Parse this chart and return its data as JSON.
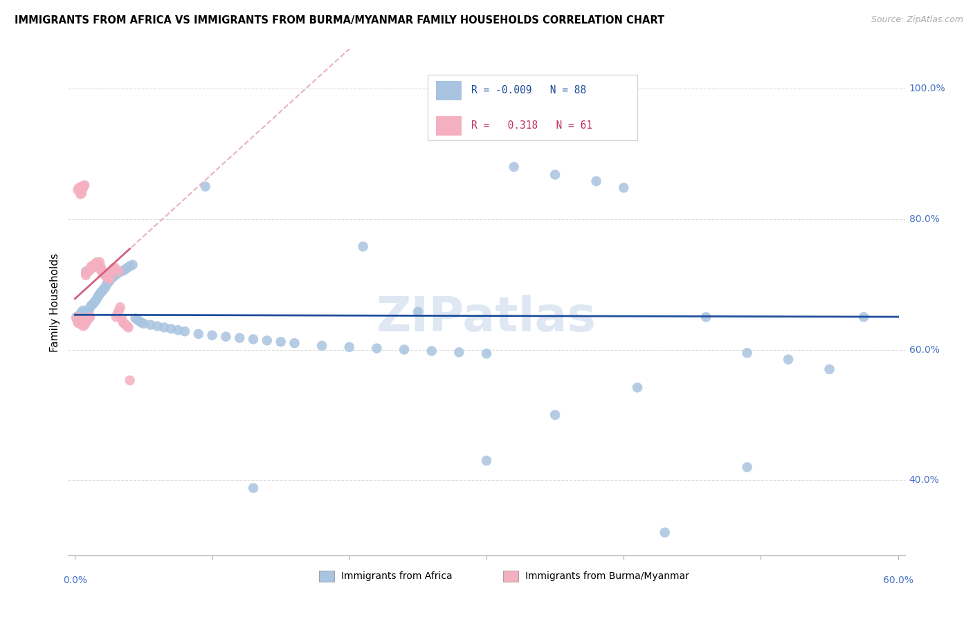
{
  "title": "IMMIGRANTS FROM AFRICA VS IMMIGRANTS FROM BURMA/MYANMAR FAMILY HOUSEHOLDS CORRELATION CHART",
  "source": "Source: ZipAtlas.com",
  "ylabel": "Family Households",
  "right_yticks": [
    "40.0%",
    "60.0%",
    "80.0%",
    "100.0%"
  ],
  "right_ytick_vals": [
    0.4,
    0.6,
    0.8,
    1.0
  ],
  "xlim": [
    -0.005,
    0.605
  ],
  "ylim": [
    0.285,
    1.06
  ],
  "R_africa": -0.009,
  "N_africa": 88,
  "R_burma": 0.318,
  "N_burma": 61,
  "africa_color": "#a8c4e0",
  "burma_color": "#f4b0c0",
  "africa_line_color": "#1f4e9a",
  "burma_solid_color": "#d46080",
  "burma_dash_color": "#e8b0c0",
  "legend_text_africa": "#1f4e9a",
  "legend_text_burma": "#c03060",
  "watermark_color": "#c8d8ea",
  "source_color": "#aaaaaa",
  "grid_color": "#dddddd",
  "africa_x": [
    0.001,
    0.002,
    0.003,
    0.003,
    0.004,
    0.004,
    0.005,
    0.005,
    0.006,
    0.006,
    0.007,
    0.007,
    0.008,
    0.009,
    0.01,
    0.01,
    0.011,
    0.012,
    0.013,
    0.014,
    0.015,
    0.016,
    0.017,
    0.018,
    0.019,
    0.02,
    0.021,
    0.022,
    0.023,
    0.024,
    0.025,
    0.026,
    0.027,
    0.028,
    0.03,
    0.032,
    0.034,
    0.036,
    0.038,
    0.04,
    0.042,
    0.044,
    0.046,
    0.048,
    0.05,
    0.055,
    0.06,
    0.065,
    0.07,
    0.075,
    0.08,
    0.09,
    0.1,
    0.11,
    0.12,
    0.13,
    0.14,
    0.15,
    0.16,
    0.18,
    0.2,
    0.22,
    0.24,
    0.26,
    0.28,
    0.3,
    0.32,
    0.35,
    0.38,
    0.4,
    0.43,
    0.46,
    0.49,
    0.52,
    0.55,
    0.575,
    0.003,
    0.005,
    0.007,
    0.008,
    0.13,
    0.25,
    0.3,
    0.21,
    0.35,
    0.41,
    0.095,
    0.49
  ],
  "africa_y": [
    0.65,
    0.648,
    0.652,
    0.645,
    0.655,
    0.648,
    0.65,
    0.658,
    0.652,
    0.66,
    0.648,
    0.655,
    0.652,
    0.648,
    0.658,
    0.66,
    0.665,
    0.668,
    0.67,
    0.672,
    0.675,
    0.678,
    0.682,
    0.685,
    0.688,
    0.69,
    0.693,
    0.695,
    0.7,
    0.702,
    0.705,
    0.708,
    0.71,
    0.712,
    0.715,
    0.718,
    0.72,
    0.722,
    0.725,
    0.728,
    0.73,
    0.648,
    0.645,
    0.642,
    0.64,
    0.638,
    0.636,
    0.634,
    0.632,
    0.63,
    0.628,
    0.624,
    0.622,
    0.62,
    0.618,
    0.616,
    0.614,
    0.612,
    0.61,
    0.606,
    0.604,
    0.602,
    0.6,
    0.598,
    0.596,
    0.594,
    0.88,
    0.868,
    0.858,
    0.848,
    0.32,
    0.65,
    0.595,
    0.585,
    0.57,
    0.65,
    0.65,
    0.648,
    0.645,
    0.72,
    0.388,
    0.658,
    0.43,
    0.758,
    0.5,
    0.542,
    0.85,
    0.42
  ],
  "burma_x": [
    0.001,
    0.002,
    0.002,
    0.003,
    0.003,
    0.004,
    0.004,
    0.005,
    0.005,
    0.006,
    0.006,
    0.007,
    0.007,
    0.008,
    0.008,
    0.009,
    0.009,
    0.01,
    0.01,
    0.011,
    0.012,
    0.012,
    0.013,
    0.014,
    0.015,
    0.016,
    0.017,
    0.018,
    0.019,
    0.02,
    0.02,
    0.021,
    0.022,
    0.023,
    0.024,
    0.025,
    0.026,
    0.027,
    0.028,
    0.029,
    0.03,
    0.031,
    0.032,
    0.033,
    0.034,
    0.035,
    0.036,
    0.037,
    0.038,
    0.039,
    0.04,
    0.003,
    0.005,
    0.008,
    0.012,
    0.018,
    0.025,
    0.032,
    0.006,
    0.01,
    0.02
  ],
  "burma_y": [
    0.648,
    0.642,
    0.845,
    0.64,
    0.848,
    0.838,
    0.644,
    0.84,
    0.846,
    0.636,
    0.85,
    0.638,
    0.852,
    0.642,
    0.718,
    0.645,
    0.72,
    0.648,
    0.722,
    0.65,
    0.724,
    0.728,
    0.726,
    0.73,
    0.732,
    0.734,
    0.728,
    0.724,
    0.726,
    0.72,
    0.718,
    0.716,
    0.714,
    0.712,
    0.71,
    0.708,
    0.716,
    0.72,
    0.724,
    0.726,
    0.65,
    0.655,
    0.66,
    0.665,
    0.648,
    0.642,
    0.64,
    0.638,
    0.636,
    0.634,
    0.553,
    0.65,
    0.85,
    0.714,
    0.726,
    0.734,
    0.71,
    0.72,
    0.848,
    0.72,
    0.718
  ]
}
